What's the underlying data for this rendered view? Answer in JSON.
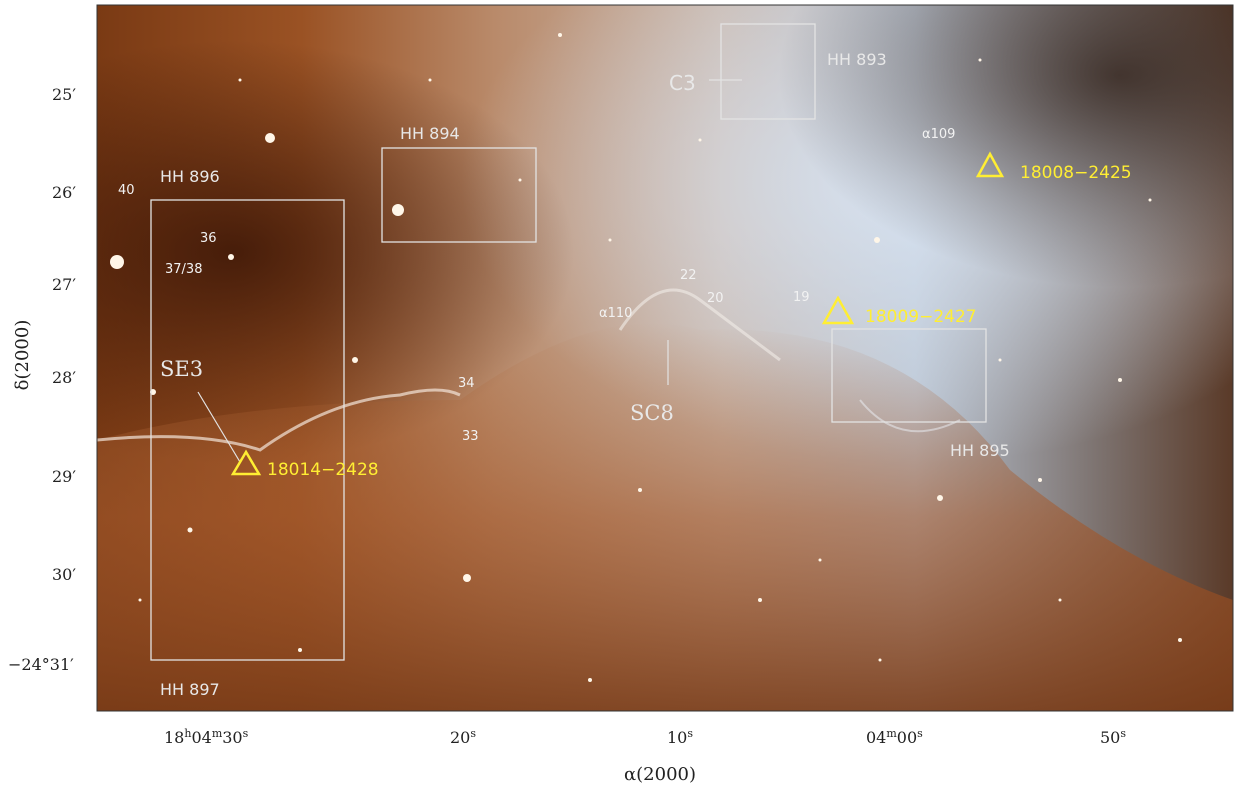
{
  "axes": {
    "ylabel": "δ(2000)",
    "xlabel": "α(2000)",
    "y_ticks": [
      "25′",
      "26′",
      "27′",
      "28′",
      "29′",
      "30′",
      "−24°31′"
    ],
    "x_ticks": {
      "t1_h": "18",
      "t1_hu": "h",
      "t1_m": "04",
      "t1_mu": "m",
      "t1_s": "30",
      "t1_su": "s",
      "t2_v": "20",
      "t2_u": "s",
      "t3_v": "10",
      "t3_u": "s",
      "t4_m": "04",
      "t4_mu": "m",
      "t4_s": "00",
      "t4_su": "s",
      "t5_v": "50",
      "t5_u": "s"
    }
  },
  "labels": {
    "hh893": "HH 893",
    "hh894": "HH 894",
    "hh895": "HH 895",
    "hh896": "HH 896",
    "hh897": "HH 897",
    "c3": "C3",
    "se3": "SE3",
    "sc8": "SC8",
    "iras1": "18008−2425",
    "iras2": "18009−2427",
    "iras3": "18014−2428",
    "n40": "40",
    "n36": "36",
    "n3738": "37/38",
    "n34": "34",
    "n33": "33",
    "n22": "22",
    "n20": "20",
    "n19": "19",
    "a110": "α110",
    "a109": "α109"
  },
  "colors": {
    "label_white": "#e8e8e8",
    "label_yellow": "#ffee33",
    "axis_text": "#222222"
  }
}
